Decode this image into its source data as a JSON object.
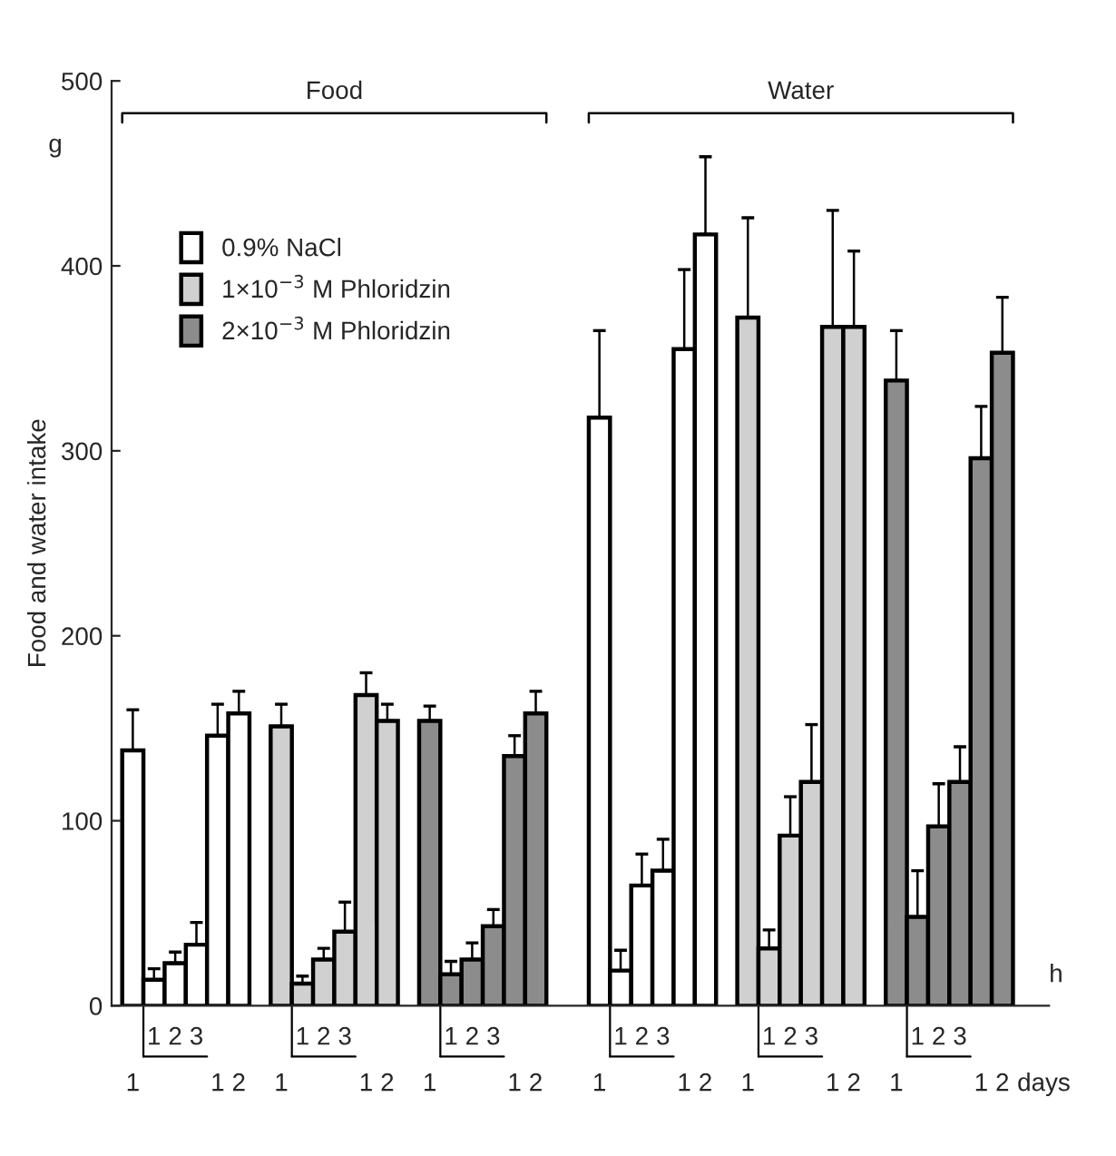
{
  "chart_data": {
    "type": "bar",
    "ylabel": "Food and water intake",
    "categories": [
      "1",
      "1",
      "2",
      "3",
      "1",
      "2",
      null,
      "1",
      "1",
      "2",
      "3",
      "1",
      "2",
      null,
      "1",
      "1",
      "2",
      "3",
      "1",
      "2",
      null,
      null,
      "1",
      "1",
      "2",
      "3",
      "1",
      "2",
      null,
      "1",
      "1",
      "2",
      "3",
      "1",
      "2",
      null,
      "1",
      "1",
      "2",
      "3",
      "1",
      "2"
    ],
    "series": [
      {
        "name": "0.9% NaCl",
        "color": "#ffffff",
        "values": [
          138,
          14,
          23,
          33,
          146,
          158,
          null,
          null,
          null,
          null,
          null,
          null,
          null,
          null,
          null,
          null,
          null,
          null,
          null,
          null,
          null,
          null,
          318,
          19,
          65,
          73,
          355,
          417,
          null,
          null,
          null,
          null,
          null,
          null,
          null,
          null,
          null,
          null,
          null,
          null,
          null,
          null
        ],
        "errors": [
          [
            138,
            160
          ],
          [
            14,
            20
          ],
          [
            23,
            29
          ],
          [
            33,
            45
          ],
          [
            146,
            163
          ],
          [
            158,
            170
          ],
          null,
          null,
          null,
          null,
          null,
          null,
          null,
          null,
          null,
          null,
          null,
          null,
          null,
          null,
          null,
          null,
          [
            318,
            365
          ],
          [
            19,
            30
          ],
          [
            65,
            82
          ],
          [
            73,
            90
          ],
          [
            355,
            398
          ],
          [
            417,
            459
          ],
          null,
          null,
          null,
          null,
          null,
          null,
          null,
          null,
          null,
          null,
          null,
          null,
          null,
          null
        ]
      },
      {
        "name": "1×10$^{−3}$ M Phloridzin",
        "color": "#d0d0d0",
        "values": [
          null,
          null,
          null,
          null,
          null,
          null,
          null,
          151,
          12,
          25,
          40,
          168,
          154,
          null,
          null,
          null,
          null,
          null,
          null,
          null,
          null,
          null,
          null,
          null,
          null,
          null,
          null,
          null,
          null,
          372,
          31,
          92,
          121,
          367,
          367,
          null,
          null,
          null,
          null,
          null,
          null,
          null
        ],
        "errors": [
          null,
          null,
          null,
          null,
          null,
          null,
          null,
          [
            151,
            163
          ],
          [
            12,
            16
          ],
          [
            25,
            31
          ],
          [
            40,
            56
          ],
          [
            168,
            180
          ],
          [
            154,
            163
          ],
          null,
          null,
          null,
          null,
          null,
          null,
          null,
          null,
          null,
          null,
          null,
          null,
          null,
          null,
          null,
          null,
          [
            372,
            426
          ],
          [
            31,
            41
          ],
          [
            92,
            113
          ],
          [
            121,
            152
          ],
          [
            367,
            430
          ],
          [
            367,
            408
          ],
          null,
          null,
          null,
          null,
          null,
          null,
          null
        ]
      },
      {
        "name": "2×10$^{−3}$ M Phloridzin",
        "color": "#8c8c8c",
        "values": [
          null,
          null,
          null,
          null,
          null,
          null,
          null,
          null,
          null,
          null,
          null,
          null,
          null,
          null,
          154,
          17,
          25,
          43,
          135,
          158,
          null,
          null,
          null,
          null,
          null,
          null,
          null,
          null,
          null,
          null,
          null,
          null,
          null,
          null,
          null,
          null,
          338,
          48,
          97,
          121,
          296,
          353
        ],
        "errors": [
          null,
          null,
          null,
          null,
          null,
          null,
          null,
          null,
          null,
          null,
          null,
          null,
          null,
          null,
          [
            154,
            162
          ],
          [
            17,
            24
          ],
          [
            25,
            34
          ],
          [
            43,
            52
          ],
          [
            135,
            146
          ],
          [
            158,
            170
          ],
          null,
          null,
          null,
          null,
          null,
          null,
          null,
          null,
          null,
          null,
          null,
          null,
          null,
          null,
          null,
          null,
          [
            338,
            365
          ],
          [
            48,
            73
          ],
          [
            97,
            120
          ],
          [
            121,
            140
          ],
          [
            296,
            324
          ],
          [
            353,
            383
          ]
        ]
      }
    ],
    "ylim": [
      0,
      500
    ],
    "yticks": [
      0,
      100,
      200,
      300,
      400,
      500
    ],
    "annotations": [
      "Food",
      "Water",
      "g",
      "h",
      "days"
    ],
    "legend": "top left",
    "grid": false
  }
}
